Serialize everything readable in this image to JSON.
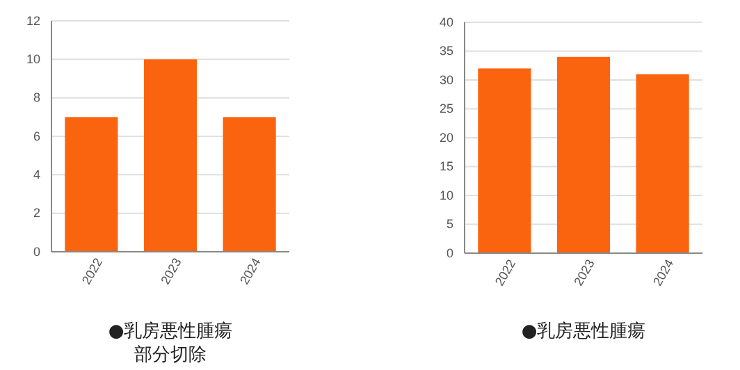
{
  "chart_data": [
    {
      "type": "bar",
      "title": "●乳房悪性腫瘍部分切除",
      "categories": [
        "2022",
        "2023",
        "2024"
      ],
      "values": [
        7,
        10,
        7
      ],
      "color": "#fa640f",
      "ylim": [
        0,
        12
      ],
      "yticks": [
        0,
        2,
        4,
        6,
        8,
        10,
        12
      ],
      "grid": "y"
    },
    {
      "type": "bar",
      "title": "●乳房悪性腫瘍",
      "categories": [
        "2022",
        "2023",
        "2024"
      ],
      "values": [
        32,
        34,
        31
      ],
      "color": "#fa640f",
      "ylim": [
        0,
        40
      ],
      "yticks": [
        0,
        5,
        10,
        15,
        20,
        25,
        30,
        35,
        40
      ],
      "grid": "y"
    }
  ]
}
